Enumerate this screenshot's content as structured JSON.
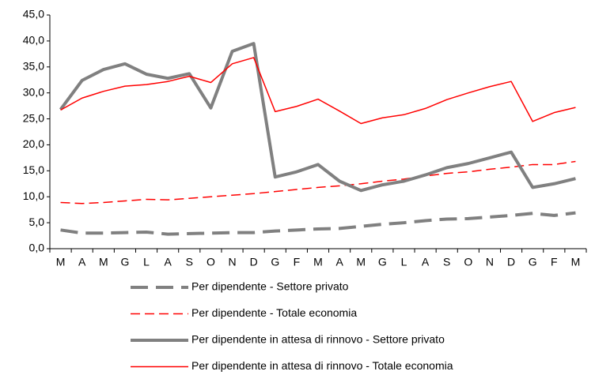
{
  "chart_data": {
    "type": "line",
    "categories": [
      "M",
      "A",
      "M",
      "G",
      "L",
      "A",
      "S",
      "O",
      "N",
      "D",
      "G",
      "F",
      "M",
      "A",
      "M",
      "G",
      "L",
      "A",
      "S",
      "O",
      "N",
      "D",
      "G",
      "F",
      "M"
    ],
    "ylim": [
      0,
      45
    ],
    "yticks": [
      {
        "value": 0,
        "label": "0,0"
      },
      {
        "value": 5,
        "label": "5,0"
      },
      {
        "value": 10,
        "label": "10,0"
      },
      {
        "value": 15,
        "label": "15,0"
      },
      {
        "value": 20,
        "label": "20,0"
      },
      {
        "value": 25,
        "label": "25,0"
      },
      {
        "value": 30,
        "label": "30,0"
      },
      {
        "value": 35,
        "label": "35,0"
      },
      {
        "value": 40,
        "label": "40,0"
      },
      {
        "value": 45,
        "label": "45,0"
      }
    ],
    "grid": false,
    "legend": "bottom",
    "series": [
      {
        "name": "Per dipendente - Settore privato",
        "color": "#808080",
        "style": "dashed",
        "width": 4,
        "values": [
          3.6,
          3.0,
          3.0,
          3.1,
          3.2,
          2.8,
          2.9,
          3.0,
          3.1,
          3.1,
          3.4,
          3.6,
          3.8,
          3.9,
          4.3,
          4.7,
          5.0,
          5.4,
          5.7,
          5.8,
          6.1,
          6.4,
          6.8,
          6.4,
          6.9
        ]
      },
      {
        "name": "Per dipendente - Totale economia",
        "color": "#ff0000",
        "style": "dashed",
        "width": 1.5,
        "values": [
          8.9,
          8.7,
          8.9,
          9.2,
          9.5,
          9.4,
          9.7,
          10.0,
          10.3,
          10.6,
          11.0,
          11.4,
          11.8,
          12.1,
          12.5,
          13.0,
          13.4,
          14.0,
          14.5,
          14.8,
          15.3,
          15.7,
          16.2,
          16.2,
          16.8
        ]
      },
      {
        "name": "Per dipendente in attesa di rinnovo - Settore privato",
        "color": "#808080",
        "style": "solid",
        "width": 4,
        "values": [
          26.8,
          32.4,
          34.5,
          35.6,
          33.6,
          32.8,
          33.7,
          27.1,
          38.0,
          39.5,
          13.8,
          14.8,
          16.2,
          13.0,
          11.2,
          12.3,
          13.0,
          14.2,
          15.6,
          16.4,
          17.5,
          18.6,
          11.8,
          12.5,
          13.5
        ]
      },
      {
        "name": "Per dipendente in attesa di rinnovo - Totale economia",
        "color": "#ff0000",
        "style": "solid",
        "width": 1.5,
        "values": [
          26.7,
          29.0,
          30.3,
          31.3,
          31.6,
          32.2,
          33.2,
          32.0,
          35.6,
          36.8,
          26.4,
          27.4,
          28.8,
          26.5,
          24.1,
          25.2,
          25.8,
          27.0,
          28.7,
          30.0,
          31.2,
          32.2,
          24.5,
          26.2,
          27.2
        ]
      }
    ]
  }
}
